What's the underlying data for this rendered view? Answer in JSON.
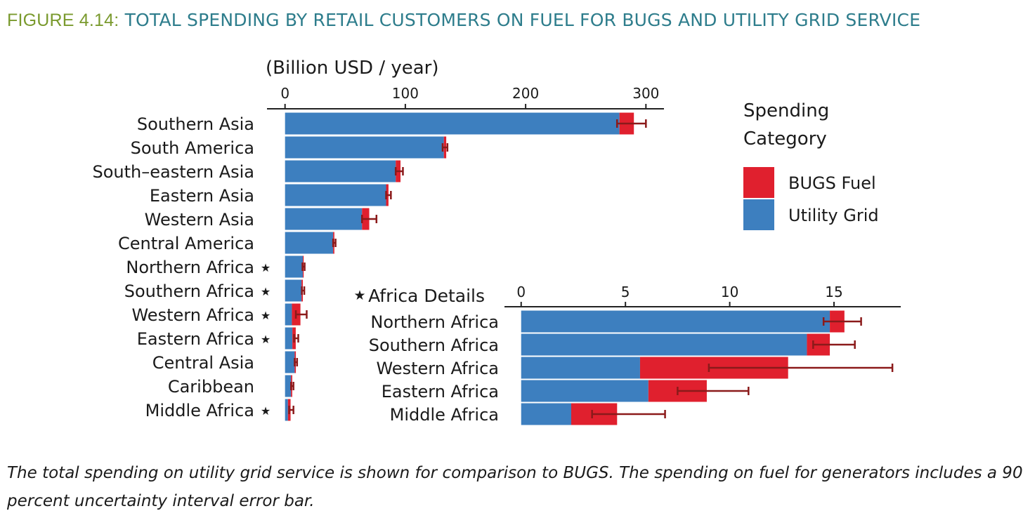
{
  "figure": {
    "number": "FIGURE 4.14:",
    "title": "TOTAL SPENDING BY RETAIL CUSTOMERS ON FUEL FOR BUGS AND UTILITY GRID SERVICE"
  },
  "caption_lines": [
    "The total spending on utility grid service is shown for comparison to BUGS. The spending on fuel for generators includes a 90",
    "percent uncertainty interval error bar."
  ],
  "colors": {
    "bugs_fuel": "#e0202e",
    "utility_grid": "#3d7fbf",
    "error_bar": "#8b1a1a"
  },
  "legend": {
    "title_lines": [
      "Spending",
      "Category"
    ],
    "items": [
      {
        "label": "BUGS Fuel",
        "color": "#e0202e"
      },
      {
        "label": "Utility Grid",
        "color": "#3d7fbf"
      }
    ]
  },
  "chart_data": [
    {
      "type": "bar",
      "orientation": "horizontal",
      "stacked": true,
      "title": "(Billion USD / year)",
      "xlim": [
        -15,
        315
      ],
      "xticks": [
        0,
        100,
        200,
        300
      ],
      "categories": [
        "Southern Asia",
        "South America",
        "South–eastern Asia",
        "Eastern Asia",
        "Western Asia",
        "Central America",
        "Northern Africa",
        "Southern Africa",
        "Western Africa",
        "Eastern Africa",
        "Central Asia",
        "Caribbean",
        "Middle Africa"
      ],
      "starred": [
        false,
        false,
        false,
        false,
        false,
        false,
        true,
        true,
        true,
        true,
        false,
        false,
        true
      ],
      "series": [
        {
          "name": "Utility Grid",
          "values": [
            278,
            132,
            92,
            84,
            64,
            40,
            14.8,
            13.7,
            5.7,
            6.1,
            8,
            5,
            2.4
          ]
        },
        {
          "name": "BUGS Fuel",
          "values": [
            12,
            2,
            4,
            2,
            6,
            1,
            0.7,
            1.1,
            7.1,
            2.8,
            1,
            1,
            2.2
          ]
        }
      ],
      "error_bars": [
        [
          276,
          300
        ],
        [
          131,
          135
        ],
        [
          92,
          98
        ],
        [
          84,
          88
        ],
        [
          64,
          76
        ],
        [
          40,
          42
        ],
        [
          14.5,
          16.3
        ],
        [
          14,
          16
        ],
        [
          9,
          18
        ],
        [
          7.5,
          11
        ],
        [
          8,
          10
        ],
        [
          5,
          7
        ],
        [
          3.4,
          7
        ]
      ]
    },
    {
      "type": "bar",
      "orientation": "horizontal",
      "stacked": true,
      "title": "Africa Details",
      "xlim": [
        -0.8,
        18.2
      ],
      "xticks": [
        0,
        5,
        10,
        15
      ],
      "categories": [
        "Northern Africa",
        "Southern Africa",
        "Western Africa",
        "Eastern Africa",
        "Middle Africa"
      ],
      "series": [
        {
          "name": "Utility Grid",
          "values": [
            14.8,
            13.7,
            5.7,
            6.1,
            2.4
          ]
        },
        {
          "name": "BUGS Fuel",
          "values": [
            0.7,
            1.1,
            7.1,
            2.8,
            2.2
          ]
        }
      ],
      "error_bars": [
        [
          14.5,
          16.3
        ],
        [
          14,
          16
        ],
        [
          9,
          17.8
        ],
        [
          7.5,
          10.9
        ],
        [
          3.4,
          6.9
        ]
      ]
    }
  ]
}
